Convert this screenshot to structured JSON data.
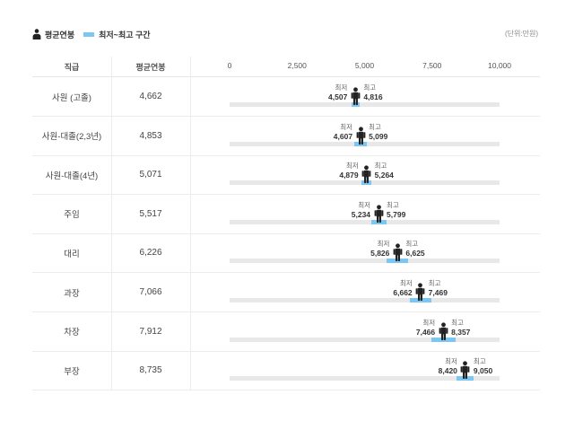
{
  "legend": {
    "avg_label": "평균연봉",
    "range_label": "최저~최고 구간"
  },
  "unit": "(단위:만원)",
  "headers": {
    "position": "직급",
    "avg": "평균연봉"
  },
  "labels": {
    "min_caption": "최저",
    "max_caption": "최고"
  },
  "colors": {
    "range": "#7cc6f3",
    "track": "#e8e8e8",
    "marker": "#222222"
  },
  "chart_data": {
    "type": "range-dot",
    "title": "",
    "xlabel": "",
    "ylabel": "",
    "xlim": [
      0,
      10000
    ],
    "ticks": [
      "0",
      "2,500",
      "5,000",
      "7,500",
      "10,000"
    ],
    "tick_values": [
      0,
      2500,
      5000,
      7500,
      10000
    ],
    "grid": false,
    "legend_position": "top-left",
    "rows": [
      {
        "position": "사원 (고졸)",
        "avg": 4662,
        "avg_label": "4,662",
        "min": 4507,
        "min_label": "4,507",
        "max": 4816,
        "max_label": "4,816"
      },
      {
        "position": "사원-대졸(2,3년)",
        "avg": 4853,
        "avg_label": "4,853",
        "min": 4607,
        "min_label": "4,607",
        "max": 5099,
        "max_label": "5,099"
      },
      {
        "position": "사원-대졸(4년)",
        "avg": 5071,
        "avg_label": "5,071",
        "min": 4879,
        "min_label": "4,879",
        "max": 5264,
        "max_label": "5,264"
      },
      {
        "position": "주임",
        "avg": 5517,
        "avg_label": "5,517",
        "min": 5234,
        "min_label": "5,234",
        "max": 5799,
        "max_label": "5,799"
      },
      {
        "position": "대리",
        "avg": 6226,
        "avg_label": "6,226",
        "min": 5826,
        "min_label": "5,826",
        "max": 6625,
        "max_label": "6,625"
      },
      {
        "position": "과장",
        "avg": 7066,
        "avg_label": "7,066",
        "min": 6662,
        "min_label": "6,662",
        "max": 7469,
        "max_label": "7,469"
      },
      {
        "position": "차장",
        "avg": 7912,
        "avg_label": "7,912",
        "min": 7466,
        "min_label": "7,466",
        "max": 8357,
        "max_label": "8,357"
      },
      {
        "position": "부장",
        "avg": 8735,
        "avg_label": "8,735",
        "min": 8420,
        "min_label": "8,420",
        "max": 9050,
        "max_label": "9,050"
      }
    ]
  }
}
